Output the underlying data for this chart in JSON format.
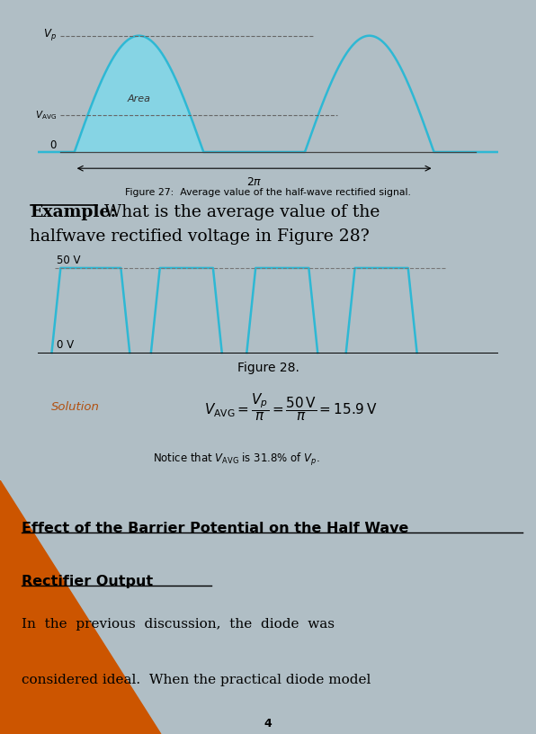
{
  "page_bg": "#b0bec5",
  "fig_width": 5.96,
  "fig_height": 8.42,
  "fig27_caption": "Figure 27:  Average value of the half-wave rectified signal.",
  "wave_color": "#2eb8d4",
  "wave_fill_color": "#7fd8ea",
  "solution_bg": "#f5cfa0",
  "section_bg_cyan": "#2ab8cc",
  "section_bg_orange": "#cc5500",
  "white": "#ffffff",
  "gray_border": "#aaaaaa"
}
